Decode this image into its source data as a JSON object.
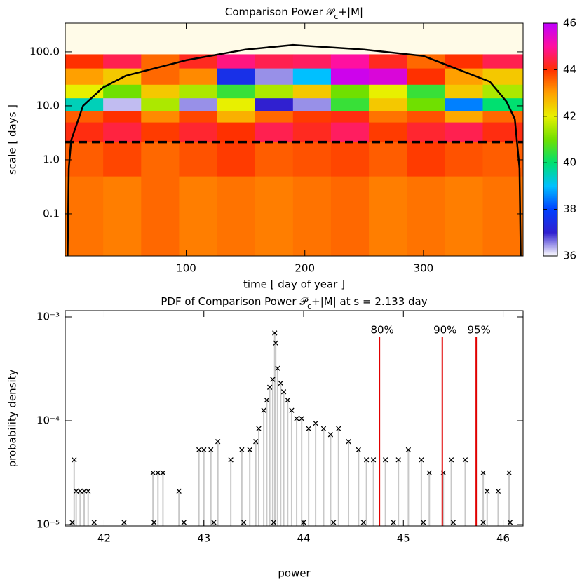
{
  "chart_data": [
    {
      "type": "heatmap",
      "title": "Comparison Power 𝒫",
      "title_subscript": "c",
      "title_suffix": "+|M|",
      "xlabel": "time [ day of year ]",
      "ylabel": "scale [ days ]",
      "xlim": [
        -2,
        384
      ],
      "xticks": [
        100,
        200,
        300
      ],
      "ylim": [
        0.0166,
        340
      ],
      "ylog": true,
      "yticks": [
        0.1,
        {
          "value": 1,
          "label": "1.0"
        },
        {
          "value": 10,
          "label": "10.0"
        },
        {
          "value": 100,
          "label": "100.0"
        }
      ],
      "x_edges": [
        -2,
        30,
        62,
        94,
        126,
        158,
        190,
        222,
        254,
        286,
        318,
        350,
        384
      ],
      "y_edges": [
        0.0166,
        0.5,
        2.2,
        5,
        8,
        14,
        25,
        50,
        90,
        340
      ],
      "values": [
        [
          43.4,
          43.3,
          43.5,
          43.3,
          43.4,
          43.3,
          43.4,
          43.5,
          43.3,
          43.4,
          43.3,
          43.4
        ],
        [
          43.6,
          43.8,
          43.5,
          43.7,
          43.9,
          43.6,
          43.7,
          43.8,
          43.6,
          43.9,
          43.7,
          43.6
        ],
        [
          44.1,
          44.4,
          43.9,
          44.3,
          44.0,
          44.5,
          44.2,
          44.6,
          43.9,
          44.3,
          44.5,
          44.1
        ],
        [
          43.6,
          44.0,
          43.2,
          43.8,
          42.8,
          43.5,
          43.9,
          44.1,
          43.4,
          43.7,
          42.9,
          43.5
        ],
        [
          39.5,
          36.3,
          41.5,
          36.5,
          42.0,
          37.0,
          36.5,
          40.5,
          42.5,
          41.0,
          38.5,
          40.0
        ],
        [
          42.0,
          41.0,
          42.5,
          41.5,
          40.5,
          41.5,
          42.5,
          41.0,
          42.0,
          40.5,
          42.5,
          41.5
        ],
        [
          43.0,
          42.5,
          43.5,
          43.2,
          37.5,
          36.5,
          39.0,
          45.8,
          45.6,
          44.0,
          43.0,
          42.5
        ],
        [
          44.0,
          44.5,
          43.5,
          44.2,
          44.8,
          44.5,
          44.6,
          45.0,
          44.2,
          43.5,
          44.0,
          44.5
        ],
        [
          null,
          null,
          null,
          null,
          null,
          null,
          null,
          null,
          null,
          null,
          null,
          null
        ]
      ],
      "nodata_color": "#fffbe8",
      "colorbar": {
        "lim": [
          36,
          46
        ],
        "ticks": [
          36,
          38,
          40,
          42,
          44,
          46
        ],
        "colors": [
          "#ffffff",
          "#3020d0",
          "#0040ff",
          "#00c0ff",
          "#00e070",
          "#70e000",
          "#e8f000",
          "#ffa000",
          "#ff3000",
          "#ff10a0",
          "#c000ff"
        ]
      },
      "coi": {
        "x": [
          0,
          1,
          3,
          13,
          30,
          49,
          100,
          150,
          190,
          250,
          300,
          356,
          370,
          377,
          381,
          382
        ],
        "y": [
          0.0166,
          0.7,
          2.3,
          10,
          22,
          36,
          70,
          110,
          134,
          110,
          84,
          28,
          12,
          5.7,
          0.7,
          0.0166
        ],
        "color": "#000000"
      },
      "reference_scale": 2.133,
      "reference_color": "#000000"
    },
    {
      "type": "scatter",
      "title": "PDF of Comparison Power 𝒫",
      "title_subscript": "c",
      "title_suffix": "+|M| at s = 2.133 day",
      "xlabel": "power",
      "ylabel": "probability density",
      "xlim": [
        41.61,
        46.2
      ],
      "xticks": [
        42,
        43,
        44,
        45,
        46
      ],
      "ylim": [
        9.7e-06,
        0.00115
      ],
      "ylog": true,
      "yticks": [
        {
          "value": 1e-05,
          "label": "10⁻⁵"
        },
        {
          "value": 0.0001,
          "label": "10⁻⁴"
        },
        {
          "value": 0.001,
          "label": "10⁻³"
        }
      ],
      "series": [
        {
          "color": "#000000",
          "stem_color": "#c8c8c8",
          "x": [
            41.68,
            41.9,
            42.2,
            42.5,
            42.8,
            43.1,
            43.4,
            43.7,
            44.0,
            44.3,
            44.6,
            44.9,
            45.2,
            45.5,
            45.8,
            46.07,
            41.7,
            41.72,
            41.76,
            41.8,
            41.84,
            42.49,
            42.54,
            42.59,
            42.75,
            42.95,
            43.0,
            43.07,
            43.14,
            43.27,
            43.38,
            43.46,
            43.52,
            43.55,
            43.6,
            43.63,
            43.66,
            43.69,
            43.71,
            43.72,
            43.74,
            43.77,
            43.8,
            43.84,
            43.88,
            43.93,
            43.98,
            44.05,
            44.12,
            44.2,
            44.27,
            44.35,
            44.45,
            44.55,
            44.63,
            44.7,
            44.82,
            44.95,
            45.05,
            45.18,
            45.26,
            45.4,
            45.48,
            45.62,
            45.8,
            45.84,
            45.95,
            46.06
          ],
          "values": [
            1.05e-05,
            1.05e-05,
            1.05e-05,
            1.05e-05,
            1.05e-05,
            1.05e-05,
            1.05e-05,
            1.05e-05,
            1.05e-05,
            1.05e-05,
            1.05e-05,
            1.05e-05,
            1.05e-05,
            1.05e-05,
            1.05e-05,
            1.05e-05,
            4.2e-05,
            2.1e-05,
            2.1e-05,
            2.1e-05,
            2.1e-05,
            3.15e-05,
            3.15e-05,
            3.15e-05,
            2.1e-05,
            5.25e-05,
            5.25e-05,
            5.25e-05,
            6.3e-05,
            4.2e-05,
            5.25e-05,
            5.25e-05,
            6.3e-05,
            8.4e-05,
            0.000126,
            0.000158,
            0.00021,
            0.00025,
            0.0007,
            0.00056,
            0.00032,
            0.00023,
            0.00019,
            0.000158,
            0.000126,
            0.000105,
            0.000105,
            8.4e-05,
            9.45e-05,
            8.4e-05,
            7.35e-05,
            8.4e-05,
            6.3e-05,
            5.25e-05,
            4.2e-05,
            4.2e-05,
            4.2e-05,
            4.2e-05,
            5.25e-05,
            4.2e-05,
            3.15e-05,
            3.15e-05,
            4.2e-05,
            4.2e-05,
            3.15e-05,
            2.1e-05,
            2.1e-05,
            3.15e-05
          ]
        }
      ],
      "thresholds": [
        {
          "value": 44.76,
          "label": "80%"
        },
        {
          "value": 45.39,
          "label": "90%"
        },
        {
          "value": 45.73,
          "label": "95%"
        }
      ],
      "threshold_color": "#e00000"
    }
  ]
}
